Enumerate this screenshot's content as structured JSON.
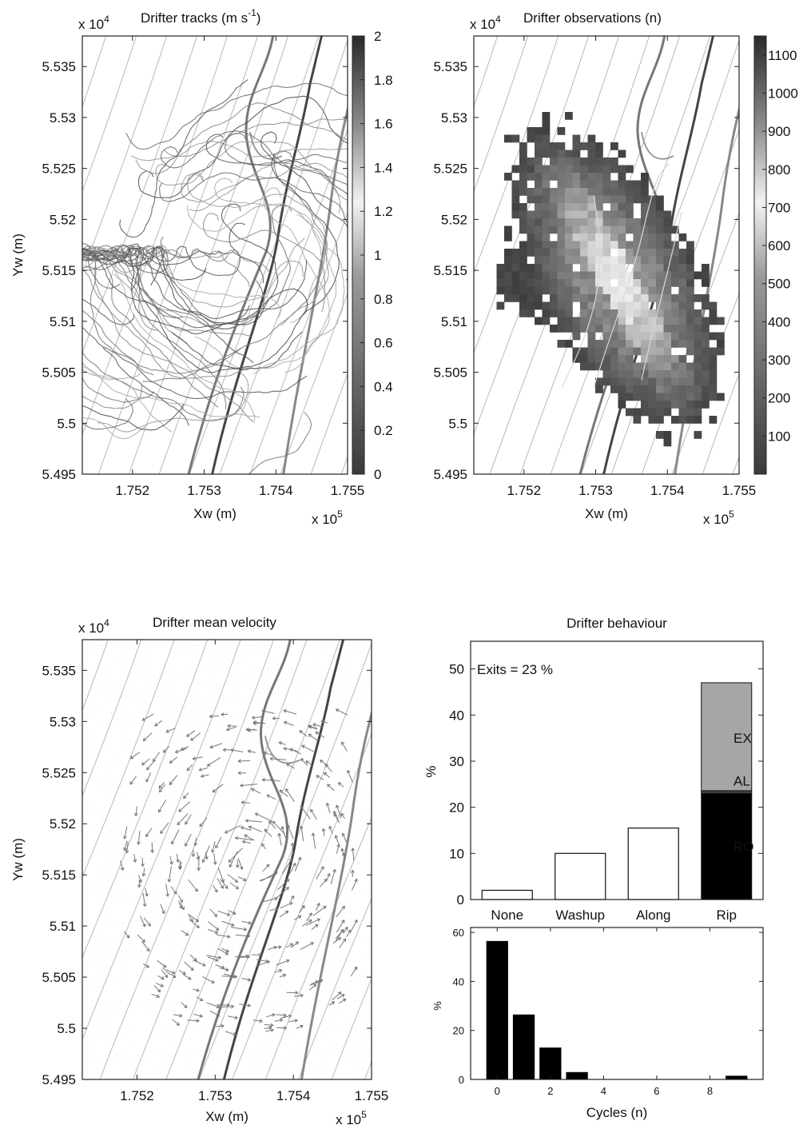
{
  "chart_data": [
    {
      "type": "line",
      "title": "Drifter tracks (m s",
      "title_sup": "-1",
      "title_end": ")",
      "xlabel": "Xw (m)",
      "ylabel": "Yw (m)",
      "x_exponent": "x 10",
      "x_exponent_sup": "5",
      "y_exponent": "x 10",
      "y_exponent_sup": "4",
      "x_ticks": [
        "1.752",
        "1.753",
        "1.754",
        "1.755"
      ],
      "y_ticks": [
        "5.535",
        "5.53",
        "5.525",
        "5.52",
        "5.515",
        "5.51",
        "5.505",
        "5.5",
        "5.495"
      ],
      "xlim": [
        175130,
        175500
      ],
      "ylim": [
        54950,
        55380
      ],
      "colorbar": {
        "ticks": [
          "2",
          "1.8",
          "1.6",
          "1.4",
          "1.2",
          "1",
          "0.8",
          "0.6",
          "0.4",
          "0.2",
          "0"
        ],
        "range": [
          0,
          2
        ]
      }
    },
    {
      "type": "heatmap",
      "title": "Drifter observations (n)",
      "xlabel": "Xw (m)",
      "ylabel": "",
      "x_exponent": "x 10",
      "x_exponent_sup": "5",
      "y_exponent": "x 10",
      "y_exponent_sup": "4",
      "x_ticks": [
        "1.752",
        "1.753",
        "1.754",
        "1.755"
      ],
      "y_ticks": [
        "5.535",
        "5.53",
        "5.525",
        "5.52",
        "5.515",
        "5.51",
        "5.505",
        "5.5",
        "5.495"
      ],
      "xlim": [
        175130,
        175500
      ],
      "ylim": [
        54950,
        55380
      ],
      "colorbar": {
        "ticks": [
          "1100",
          "1000",
          "900",
          "800",
          "700",
          "600",
          "500",
          "400",
          "300",
          "200",
          "100"
        ],
        "range": [
          0,
          1150
        ]
      }
    },
    {
      "type": "scatter",
      "title": "Drifter mean velocity",
      "xlabel": "Xw (m)",
      "ylabel": "Yw (m)",
      "x_exponent": "x 10",
      "x_exponent_sup": "5",
      "y_exponent": "x 10",
      "y_exponent_sup": "4",
      "x_ticks": [
        "1.752",
        "1.753",
        "1.754",
        "1.755"
      ],
      "y_ticks": [
        "5.535",
        "5.53",
        "5.525",
        "5.52",
        "5.515",
        "5.51",
        "5.505",
        "5.5",
        "5.495"
      ],
      "xlim": [
        175130,
        175500
      ],
      "ylim": [
        54950,
        55380
      ]
    },
    {
      "type": "bar",
      "title": "Drifter behaviour",
      "ylabel": "%",
      "annotation": "Exits = 23 %",
      "categories": [
        "None",
        "Washup",
        "Along",
        "Rip"
      ],
      "values": [
        2,
        10,
        15.5,
        47
      ],
      "rip_stack": [
        {
          "label": "RO",
          "value": 23,
          "color": "#000000"
        },
        {
          "label": "AL",
          "value": 0.6,
          "color": "#444444"
        },
        {
          "label": "EX",
          "value": 23.4,
          "color": "#a6a6a6"
        }
      ],
      "y_ticks": [
        "0",
        "10",
        "20",
        "30",
        "40",
        "50"
      ],
      "ylim": [
        0,
        56
      ]
    },
    {
      "type": "bar",
      "xlabel": "Cycles (n)",
      "ylabel": "%",
      "x": [
        0,
        1,
        2,
        3,
        4,
        5,
        6,
        7,
        8,
        9
      ],
      "values": [
        56.5,
        26.5,
        13,
        3,
        0,
        0,
        0,
        0,
        0,
        1.5
      ],
      "x_ticks": [
        "0",
        "2",
        "4",
        "6",
        "8"
      ],
      "y_ticks": [
        "0",
        "20",
        "40",
        "60"
      ],
      "xlim": [
        -1,
        10
      ],
      "ylim": [
        0,
        62
      ]
    }
  ]
}
